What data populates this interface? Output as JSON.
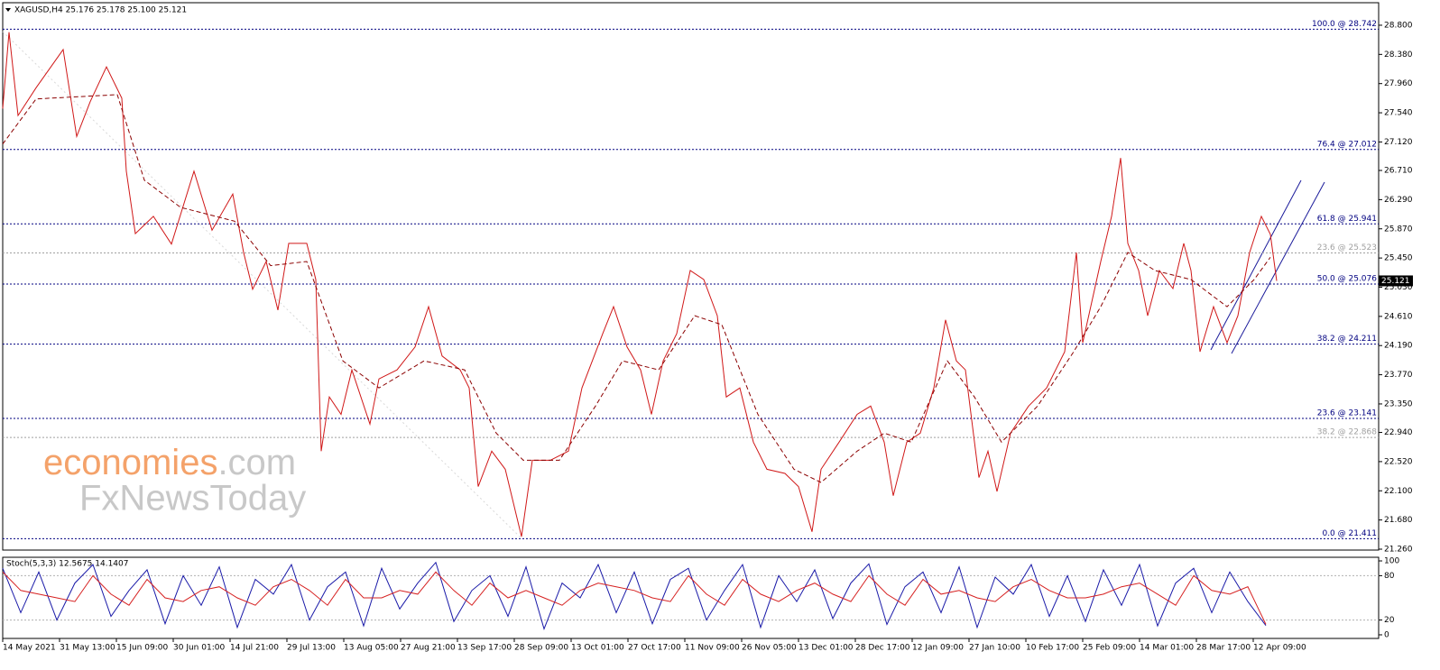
{
  "chart_data": [
    {
      "type": "line",
      "title": "XAGUSD,H4  25.176 25.178 25.100 25.121",
      "xlim": [
        0,
        1525
      ],
      "xticks": [
        {
          "value": 0,
          "label": "14 May 2021"
        },
        {
          "value": 63,
          "label": "31 May 13:00"
        },
        {
          "value": 126,
          "label": "15 Jun 09:00"
        },
        {
          "value": 189,
          "label": "30 Jun 01:00"
        },
        {
          "value": 252,
          "label": "14 Jul 21:00"
        },
        {
          "value": 315,
          "label": "29 Jul 13:00"
        },
        {
          "value": 378,
          "label": "13 Aug 05:00"
        },
        {
          "value": 441,
          "label": "27 Aug 21:00"
        },
        {
          "value": 504,
          "label": "13 Sep 17:00"
        },
        {
          "value": 567,
          "label": "28 Sep 09:00"
        },
        {
          "value": 630,
          "label": "13 Oct 01:00"
        },
        {
          "value": 693,
          "label": "27 Oct 17:00"
        },
        {
          "value": 756,
          "label": "11 Nov 09:00"
        },
        {
          "value": 819,
          "label": "26 Nov 05:00"
        },
        {
          "value": 882,
          "label": "13 Dec 01:00"
        },
        {
          "value": 945,
          "label": "28 Dec 17:00"
        },
        {
          "value": 1008,
          "label": "12 Jan 09:00"
        },
        {
          "value": 1071,
          "label": "27 Jan 10:00"
        },
        {
          "value": 1134,
          "label": "10 Feb 17:00"
        },
        {
          "value": 1197,
          "label": "25 Feb 09:00"
        },
        {
          "value": 1260,
          "label": "14 Mar 01:00"
        },
        {
          "value": 1323,
          "label": "28 Mar 17:00"
        },
        {
          "value": 1386,
          "label": "12 Apr 09:00"
        }
      ],
      "ylim": [
        21.247,
        29.124
      ],
      "yticks": [
        {
          "value": 28.8,
          "label": "28.800"
        },
        {
          "value": 28.38,
          "label": "28.380"
        },
        {
          "value": 27.96,
          "label": "27.960"
        },
        {
          "value": 27.54,
          "label": "27.540"
        },
        {
          "value": 27.12,
          "label": "27.120"
        },
        {
          "value": 26.71,
          "label": "26.710"
        },
        {
          "value": 26.29,
          "label": "26.290"
        },
        {
          "value": 25.87,
          "label": "25.870"
        },
        {
          "value": 25.45,
          "label": "25.450"
        },
        {
          "value": 25.03,
          "label": "25.030"
        },
        {
          "value": 24.61,
          "label": "24.610"
        },
        {
          "value": 24.19,
          "label": "24.190"
        },
        {
          "value": 23.77,
          "label": "23.770"
        },
        {
          "value": 23.35,
          "label": "23.350"
        },
        {
          "value": 22.94,
          "label": "22.940"
        },
        {
          "value": 22.52,
          "label": "22.520"
        },
        {
          "value": 22.1,
          "label": "22.100"
        },
        {
          "value": 21.68,
          "label": "21.680"
        },
        {
          "value": 21.26,
          "label": "21.260"
        }
      ],
      "series": [
        {
          "color": "#d01818",
          "dashed": false,
          "x": [
            0,
            7,
            17,
            37,
            67,
            82,
            97,
            115,
            132,
            137,
            147,
            167,
            187,
            212,
            232,
            255,
            267,
            277,
            292,
            305,
            317,
            337,
            347,
            353,
            362,
            375,
            387,
            407,
            417,
            437,
            457,
            472,
            487,
            507,
            517,
            527,
            542,
            557,
            575,
            587,
            607,
            627,
            642,
            665,
            677,
            692,
            707,
            719,
            732,
            747,
            762,
            777,
            792,
            802,
            817,
            832,
            847,
            867,
            882,
            897,
            907,
            927,
            947,
            962,
            977,
            987,
            1002,
            1017,
            1032,
            1045,
            1057,
            1067,
            1082,
            1092,
            1102,
            1117,
            1137,
            1157,
            1177,
            1190,
            1197,
            1217,
            1229,
            1239,
            1247,
            1259,
            1269,
            1282,
            1297,
            1309,
            1317,
            1327,
            1342,
            1357,
            1369,
            1382,
            1395,
            1405,
            1412
          ],
          "values": [
            27.6,
            28.7,
            27.5,
            27.9,
            28.45,
            27.2,
            27.7,
            28.2,
            27.75,
            26.7,
            25.8,
            26.05,
            25.65,
            26.7,
            25.85,
            26.37,
            25.53,
            25.0,
            25.4,
            24.7,
            25.66,
            25.66,
            25.14,
            22.67,
            23.45,
            23.2,
            23.84,
            23.06,
            23.71,
            23.84,
            24.17,
            24.75,
            24.04,
            23.84,
            23.58,
            22.16,
            22.67,
            22.41,
            21.44,
            22.54,
            22.54,
            22.67,
            23.58,
            24.36,
            24.75,
            24.17,
            23.84,
            23.2,
            23.97,
            24.36,
            25.27,
            25.14,
            24.62,
            23.45,
            23.58,
            22.8,
            22.41,
            22.35,
            22.16,
            21.51,
            22.41,
            22.8,
            23.2,
            23.32,
            22.8,
            22.03,
            22.8,
            22.93,
            23.58,
            24.56,
            23.97,
            23.84,
            22.29,
            22.67,
            22.09,
            22.93,
            23.32,
            23.58,
            24.1,
            25.53,
            24.23,
            25.4,
            26.05,
            26.89,
            25.66,
            25.27,
            24.62,
            25.27,
            25.01,
            25.66,
            25.27,
            24.1,
            24.75,
            24.23,
            24.62,
            25.53,
            26.05,
            25.79,
            25.121
          ]
        },
        {
          "color": "#8b0000",
          "dashed": true,
          "x": [
            0,
            37,
            127,
            157,
            197,
            257,
            297,
            337,
            377,
            417,
            467,
            512,
            547,
            577,
            617,
            657,
            687,
            727,
            767,
            797,
            837,
            877,
            907,
            947,
            977,
            1007,
            1047,
            1077,
            1107,
            1147,
            1187,
            1217,
            1247,
            1277,
            1317,
            1357,
            1387,
            1405
          ],
          "values": [
            27.09,
            27.74,
            27.8,
            26.57,
            26.18,
            25.98,
            25.34,
            25.4,
            23.97,
            23.58,
            23.97,
            23.84,
            22.93,
            22.54,
            22.54,
            23.32,
            23.97,
            23.84,
            24.62,
            24.49,
            23.2,
            22.41,
            22.22,
            22.67,
            22.93,
            22.8,
            23.97,
            23.45,
            22.8,
            23.32,
            24.1,
            24.75,
            25.53,
            25.27,
            25.14,
            24.75,
            25.14,
            25.46
          ]
        }
      ],
      "levels": [
        {
          "label": "100.0 @ 28.742",
          "value": 28.742,
          "color": "#000080"
        },
        {
          "label": "76.4 @ 27.012",
          "value": 27.012,
          "color": "#000080"
        },
        {
          "label": "61.8 @ 25.941",
          "value": 25.941,
          "color": "#000080"
        },
        {
          "label": "23.6 @ 25.523",
          "value": 25.523,
          "color": "#a0a0a0"
        },
        {
          "label": "50.0 @ 25.076",
          "value": 25.076,
          "color": "#000080"
        },
        {
          "label": "38.2 @ 24.211",
          "value": 24.211,
          "color": "#000080"
        },
        {
          "label": "23.6 @ 23.141",
          "value": 23.141,
          "color": "#000080"
        },
        {
          "label": "38.2 @ 22.868",
          "value": 22.868,
          "color": "#a0a0a0"
        },
        {
          "label": "0.0 @ 21.411",
          "value": 21.411,
          "color": "#000080"
        }
      ],
      "last_price": 25.121,
      "watermark": [
        "economies",
        ".com",
        "FxNewsToday"
      ]
    },
    {
      "type": "line",
      "title": "Stoch(5,3,3) 12.5675 14.1407",
      "xlim": [
        0,
        1525
      ],
      "ylim": [
        -4.9,
        104.9
      ],
      "yticks": [
        0,
        20,
        80,
        100
      ],
      "levels": [
        20,
        80
      ],
      "series": [
        {
          "color": "#1a1aa8",
          "dashed": false,
          "x": [
            0,
            20,
            40,
            60,
            80,
            100,
            120,
            140,
            160,
            180,
            200,
            220,
            240,
            260,
            280,
            300,
            320,
            340,
            360,
            380,
            400,
            420,
            440,
            460,
            480,
            500,
            520,
            540,
            560,
            580,
            600,
            620,
            640,
            660,
            680,
            700,
            720,
            740,
            760,
            780,
            800,
            820,
            840,
            860,
            880,
            900,
            920,
            940,
            960,
            980,
            1000,
            1020,
            1040,
            1060,
            1080,
            1100,
            1120,
            1140,
            1160,
            1180,
            1200,
            1220,
            1240,
            1260,
            1280,
            1300,
            1320,
            1340,
            1360,
            1380,
            1400
          ],
          "values": [
            90,
            30,
            85,
            20,
            70,
            95,
            25,
            60,
            88,
            15,
            80,
            40,
            92,
            10,
            75,
            55,
            95,
            20,
            65,
            85,
            12,
            90,
            35,
            70,
            98,
            18,
            60,
            80,
            25,
            92,
            8,
            70,
            50,
            95,
            30,
            85,
            15,
            75,
            90,
            20,
            60,
            95,
            10,
            80,
            45,
            88,
            22,
            70,
            96,
            14,
            65,
            85,
            30,
            92,
            10,
            78,
            55,
            95,
            25,
            80,
            18,
            88,
            40,
            95,
            12,
            70,
            90,
            30,
            85,
            45,
            12.5675
          ]
        },
        {
          "color": "#d62020",
          "dashed": false,
          "x": [
            0,
            20,
            40,
            60,
            80,
            100,
            120,
            140,
            160,
            180,
            200,
            220,
            240,
            260,
            280,
            300,
            320,
            340,
            360,
            380,
            400,
            420,
            440,
            460,
            480,
            500,
            520,
            540,
            560,
            580,
            600,
            620,
            640,
            660,
            680,
            700,
            720,
            740,
            760,
            780,
            800,
            820,
            840,
            860,
            880,
            900,
            920,
            940,
            960,
            980,
            1000,
            1020,
            1040,
            1060,
            1080,
            1100,
            1120,
            1140,
            1160,
            1180,
            1200,
            1220,
            1240,
            1260,
            1280,
            1300,
            1320,
            1340,
            1360,
            1380,
            1400
          ],
          "values": [
            85,
            60,
            55,
            50,
            45,
            80,
            55,
            40,
            75,
            50,
            45,
            60,
            65,
            50,
            40,
            65,
            75,
            60,
            40,
            75,
            50,
            50,
            60,
            55,
            85,
            60,
            40,
            70,
            50,
            60,
            50,
            40,
            60,
            70,
            65,
            60,
            50,
            45,
            80,
            55,
            40,
            75,
            55,
            45,
            60,
            70,
            55,
            45,
            80,
            55,
            40,
            75,
            55,
            60,
            50,
            45,
            65,
            75,
            60,
            50,
            50,
            55,
            65,
            70,
            55,
            40,
            80,
            60,
            55,
            65,
            14.1407
          ]
        }
      ]
    }
  ]
}
